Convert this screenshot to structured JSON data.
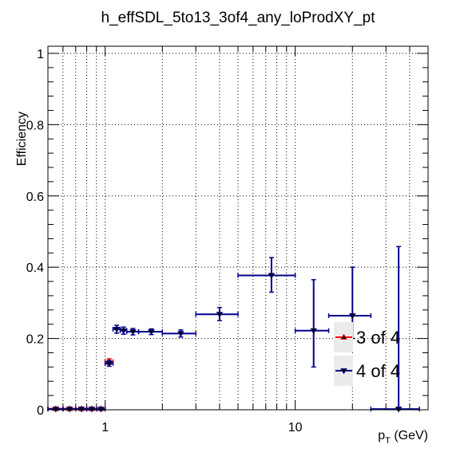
{
  "chart_data": {
    "type": "scatter",
    "title": "h_effSDL_5to13_3of4_any_loProdXY_pt",
    "xlabel": "p_{T} (GeV)",
    "xlabel_main": "p",
    "xlabel_sub": "T",
    "xlabel_unit": " (GeV)",
    "ylabel": "Efficiency",
    "xscale": "log",
    "xlim": [
      0.5,
      50
    ],
    "ylim": [
      0,
      1.02
    ],
    "grid": true,
    "legend_position": "bottom-right",
    "x_ticks": [
      {
        "value": 1,
        "label": "1"
      },
      {
        "value": 10,
        "label": "10"
      }
    ],
    "y_ticks": [
      {
        "value": 0,
        "label": "0"
      },
      {
        "value": 0.2,
        "label": "0.2"
      },
      {
        "value": 0.4,
        "label": "0.4"
      },
      {
        "value": 0.6,
        "label": "0.6"
      },
      {
        "value": 0.8,
        "label": "0.8"
      },
      {
        "value": 1,
        "label": "1"
      }
    ],
    "series": [
      {
        "name": "3 of 4",
        "color": "#ff0000",
        "marker": "triangle-up",
        "points": [
          {
            "x": 0.55,
            "xlo": 0.5,
            "xhi": 0.6,
            "y": 0.003,
            "ylo": 0.0,
            "yhi": 0.007
          },
          {
            "x": 0.65,
            "xlo": 0.6,
            "xhi": 0.7,
            "y": 0.003,
            "ylo": 0.0,
            "yhi": 0.007
          },
          {
            "x": 0.75,
            "xlo": 0.7,
            "xhi": 0.8,
            "y": 0.003,
            "ylo": 0.0,
            "yhi": 0.007
          },
          {
            "x": 0.85,
            "xlo": 0.8,
            "xhi": 0.9,
            "y": 0.003,
            "ylo": 0.0,
            "yhi": 0.007
          },
          {
            "x": 0.95,
            "xlo": 0.9,
            "xhi": 1.0,
            "y": 0.003,
            "ylo": 0.0,
            "yhi": 0.007
          },
          {
            "x": 1.05,
            "xlo": 1.0,
            "xhi": 1.1,
            "y": 0.135,
            "ylo": 0.127,
            "yhi": 0.143
          }
        ]
      },
      {
        "name": "4 of 4",
        "color": "#00008b",
        "marker": "triangle-down",
        "points": [
          {
            "x": 0.55,
            "xlo": 0.5,
            "xhi": 0.6,
            "y": 0.002,
            "ylo": 0.0,
            "yhi": 0.006
          },
          {
            "x": 0.65,
            "xlo": 0.6,
            "xhi": 0.7,
            "y": 0.002,
            "ylo": 0.0,
            "yhi": 0.006
          },
          {
            "x": 0.75,
            "xlo": 0.7,
            "xhi": 0.8,
            "y": 0.002,
            "ylo": 0.0,
            "yhi": 0.006
          },
          {
            "x": 0.85,
            "xlo": 0.8,
            "xhi": 0.9,
            "y": 0.002,
            "ylo": 0.0,
            "yhi": 0.006
          },
          {
            "x": 0.95,
            "xlo": 0.9,
            "xhi": 1.0,
            "y": 0.002,
            "ylo": 0.0,
            "yhi": 0.006
          },
          {
            "x": 1.05,
            "xlo": 1.0,
            "xhi": 1.1,
            "y": 0.13,
            "ylo": 0.122,
            "yhi": 0.138
          },
          {
            "x": 1.15,
            "xlo": 1.1,
            "xhi": 1.2,
            "y": 0.226,
            "ylo": 0.215,
            "yhi": 0.237
          },
          {
            "x": 1.25,
            "xlo": 1.2,
            "xhi": 1.3,
            "y": 0.222,
            "ylo": 0.212,
            "yhi": 0.232
          },
          {
            "x": 1.4,
            "xlo": 1.3,
            "xhi": 1.5,
            "y": 0.219,
            "ylo": 0.21,
            "yhi": 0.228
          },
          {
            "x": 1.75,
            "xlo": 1.5,
            "xhi": 2.0,
            "y": 0.219,
            "ylo": 0.211,
            "yhi": 0.227
          },
          {
            "x": 2.5,
            "xlo": 2.0,
            "xhi": 3.0,
            "y": 0.214,
            "ylo": 0.204,
            "yhi": 0.224
          },
          {
            "x": 4.0,
            "xlo": 3.0,
            "xhi": 5.0,
            "y": 0.268,
            "ylo": 0.25,
            "yhi": 0.287
          },
          {
            "x": 7.5,
            "xlo": 5.0,
            "xhi": 10.0,
            "y": 0.377,
            "ylo": 0.33,
            "yhi": 0.427
          },
          {
            "x": 12.5,
            "xlo": 10.0,
            "xhi": 15.0,
            "y": 0.222,
            "ylo": 0.12,
            "yhi": 0.365
          },
          {
            "x": 20.0,
            "xlo": 15.0,
            "xhi": 25.0,
            "y": 0.264,
            "ylo": 0.2,
            "yhi": 0.4
          },
          {
            "x": 35.0,
            "xlo": 25.0,
            "xhi": 45.0,
            "y": 0.002,
            "ylo": 0.0,
            "yhi": 0.458
          }
        ]
      }
    ]
  }
}
